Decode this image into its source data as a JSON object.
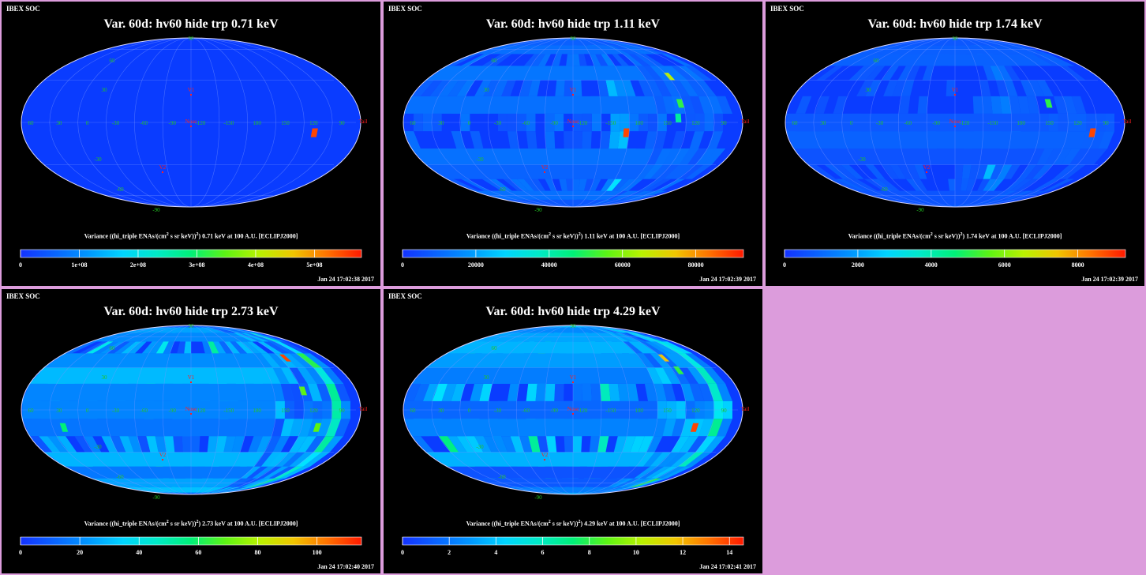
{
  "panels": [
    {
      "header": "IBEX SOC",
      "title": "Var. 60d: hv60 hide trp 0.71 keV",
      "colorbar_label": {
        "pre": "Variance ((hi_triple ENAs/(cm",
        "sup1": "2",
        "mid": " s sr keV))",
        "sup2": "2",
        "post": ") 0.71 keV at 100 A.U. [ECLIPJ2000]"
      },
      "ticks": [
        {
          "v": 0,
          "t": "0"
        },
        {
          "v": 100000000.0,
          "t": "1e+08"
        },
        {
          "v": 200000000.0,
          "t": "2e+08"
        },
        {
          "v": 300000000.0,
          "t": "3e+08"
        },
        {
          "v": 400000000.0,
          "t": "4e+08"
        },
        {
          "v": 500000000.0,
          "t": "5e+08"
        }
      ],
      "vmax": 580000000.0,
      "timestamp": "Jan 24 17:02:38 2017",
      "hot": [
        {
          "lon": 135,
          "lat": -10,
          "f": 0.95
        }
      ]
    },
    {
      "header": "IBEX SOC",
      "title": "Var. 60d: hv60 hide trp 1.11 keV",
      "colorbar_label": {
        "pre": "Variance ((hi_triple ENAs/(cm",
        "sup1": "2",
        "mid": " s sr keV))",
        "sup2": "2",
        "post": ") 1.11 keV at 100 A.U. [ECLIPJ2000]"
      },
      "ticks": [
        {
          "v": 0,
          "t": "0"
        },
        {
          "v": 20000,
          "t": "20000"
        },
        {
          "v": 40000,
          "t": "40000"
        },
        {
          "v": 60000,
          "t": "60000"
        },
        {
          "v": 80000,
          "t": "80000"
        }
      ],
      "vmax": 93000,
      "timestamp": "Jan 24 17:02:39 2017",
      "hot": [
        {
          "lon": -150,
          "lat": -10,
          "f": 0.95
        },
        {
          "lon": 150,
          "lat": 10,
          "f": 0.55
        },
        {
          "lon": 155,
          "lat": 0,
          "f": 0.45
        },
        {
          "lon": 145,
          "lat": 30,
          "f": 0.7
        }
      ]
    },
    {
      "header": "IBEX SOC",
      "title": "Var. 60d: hv60 hide trp 1.74 keV",
      "colorbar_label": {
        "pre": "Variance ((hi_triple ENAs/(cm",
        "sup1": "2",
        "mid": " s sr keV))",
        "sup2": "2",
        "post": ") 1.74 keV at 100 A.U. [ECLIPJ2000]"
      },
      "ticks": [
        {
          "v": 0,
          "t": "0"
        },
        {
          "v": 2000,
          "t": "2000"
        },
        {
          "v": 4000,
          "t": "4000"
        },
        {
          "v": 6000,
          "t": "6000"
        },
        {
          "v": 8000,
          "t": "8000"
        }
      ],
      "vmax": 9300,
      "timestamp": "Jan 24 17:02:39 2017",
      "hot": [
        {
          "lon": 120,
          "lat": -10,
          "f": 0.95
        },
        {
          "lon": 165,
          "lat": 10,
          "f": 0.55
        }
      ]
    },
    {
      "header": "IBEX SOC",
      "title": "Var. 60d: hv60 hide trp 2.73 keV",
      "colorbar_label": {
        "pre": "Variance ((hi_triple ENAs/(cm",
        "sup1": "2",
        "mid": " s sr keV))",
        "sup2": "2",
        "post": ") 2.73 keV at 100 A.U. [ECLIPJ2000]"
      },
      "ticks": [
        {
          "v": 0,
          "t": "0"
        },
        {
          "v": 20,
          "t": "20"
        },
        {
          "v": 40,
          "t": "40"
        },
        {
          "v": 60,
          "t": "60"
        },
        {
          "v": 80,
          "t": "80"
        },
        {
          "v": 100,
          "t": "100"
        }
      ],
      "vmax": 115,
      "timestamp": "Jan 24 17:02:40 2017",
      "hot": [
        {
          "lon": 140,
          "lat": 35,
          "f": 0.95
        },
        {
          "lon": 145,
          "lat": 10,
          "f": 0.6
        },
        {
          "lon": 130,
          "lat": -15,
          "f": 0.6
        },
        {
          "lon": 45,
          "lat": -15,
          "f": 0.5
        }
      ]
    },
    {
      "header": "IBEX SOC",
      "title": "Var. 60d: hv60 hide trp 4.29 keV",
      "colorbar_label": {
        "pre": "Variance ((hi_triple ENAs/(cm",
        "sup1": "2",
        "mid": " s sr keV))",
        "sup2": "2",
        "post": ") 4.29 keV at 100 A.U. [ECLIPJ2000]"
      },
      "ticks": [
        {
          "v": 0,
          "t": "0"
        },
        {
          "v": 2,
          "t": "2"
        },
        {
          "v": 4,
          "t": "4"
        },
        {
          "v": 6,
          "t": "6"
        },
        {
          "v": 8,
          "t": "8"
        },
        {
          "v": 10,
          "t": "10"
        },
        {
          "v": 12,
          "t": "12"
        },
        {
          "v": 14,
          "t": "14"
        }
      ],
      "vmax": 14.6,
      "timestamp": "Jan 24 17:02:41 2017",
      "hot": [
        {
          "lon": 145,
          "lat": 35,
          "f": 0.8
        },
        {
          "lon": 135,
          "lat": -15,
          "f": 0.95
        },
        {
          "lon": 140,
          "lat": 25,
          "f": 0.55
        }
      ]
    }
  ],
  "map_labels": {
    "lon": [
      "60",
      "30",
      "0",
      "-30",
      "-60",
      "-90",
      "-120",
      "-150",
      "180",
      "150",
      "120",
      "90"
    ],
    "lat_pos": [
      "90",
      "60",
      "30"
    ],
    "lat_neg": [
      "-30",
      "-60",
      "-90"
    ],
    "markers": {
      "v1": "V1",
      "v2": "V2",
      "nose": "Nose",
      "tail": "Tail"
    }
  },
  "colors": {
    "background": "#dc9cdc",
    "panel": "#000000",
    "map_base": "#0a3cff",
    "marker": "#ff2020",
    "grid_label": "#22c422"
  }
}
